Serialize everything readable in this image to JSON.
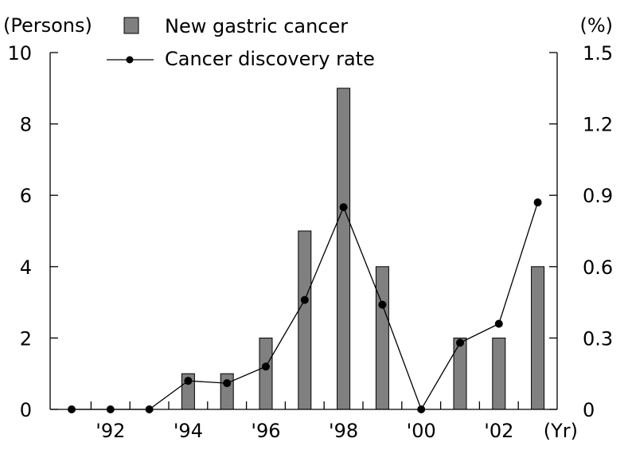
{
  "chart_data": {
    "type": "bar+line",
    "left_unit": "(Persons)",
    "right_unit": "(%)",
    "x_unit": "(Yr)",
    "years": [
      1991,
      1992,
      1993,
      1994,
      1995,
      1996,
      1997,
      1998,
      1999,
      2000,
      2001,
      2002,
      2003
    ],
    "x_tick_labels": [
      {
        "year": 1992,
        "label": "'92"
      },
      {
        "year": 1994,
        "label": "'94"
      },
      {
        "year": 1996,
        "label": "'96"
      },
      {
        "year": 1998,
        "label": "'98"
      },
      {
        "year": 2000,
        "label": "'00"
      },
      {
        "year": 2002,
        "label": "'02"
      }
    ],
    "left_axis": {
      "ylim": [
        0,
        10
      ],
      "ticks": [
        0,
        2,
        4,
        6,
        8,
        10
      ],
      "tick_labels": [
        "0",
        "2",
        "4",
        "6",
        "8",
        "10"
      ]
    },
    "right_axis": {
      "ylim": [
        0,
        1.5
      ],
      "ticks": [
        0,
        0.3,
        0.6,
        0.9,
        1.2,
        1.5
      ],
      "tick_labels": [
        "0",
        "0.3",
        "0.6",
        "0.9",
        "1.2",
        "1.5"
      ]
    },
    "series": [
      {
        "name": "New gastric cancer",
        "kind": "bar",
        "axis": "left",
        "color": "#808080",
        "values": [
          0,
          0,
          0,
          1,
          1,
          2,
          5,
          9,
          4,
          0,
          2,
          2,
          4
        ]
      },
      {
        "name": "Cancer discovery rate",
        "kind": "line",
        "axis": "right",
        "color": "#000000",
        "values": [
          0,
          0,
          0,
          0.12,
          0.11,
          0.18,
          0.46,
          0.85,
          0.44,
          0,
          0.28,
          0.36,
          0.87
        ]
      }
    ],
    "legend": {
      "position": "top-center"
    },
    "grid": false
  }
}
